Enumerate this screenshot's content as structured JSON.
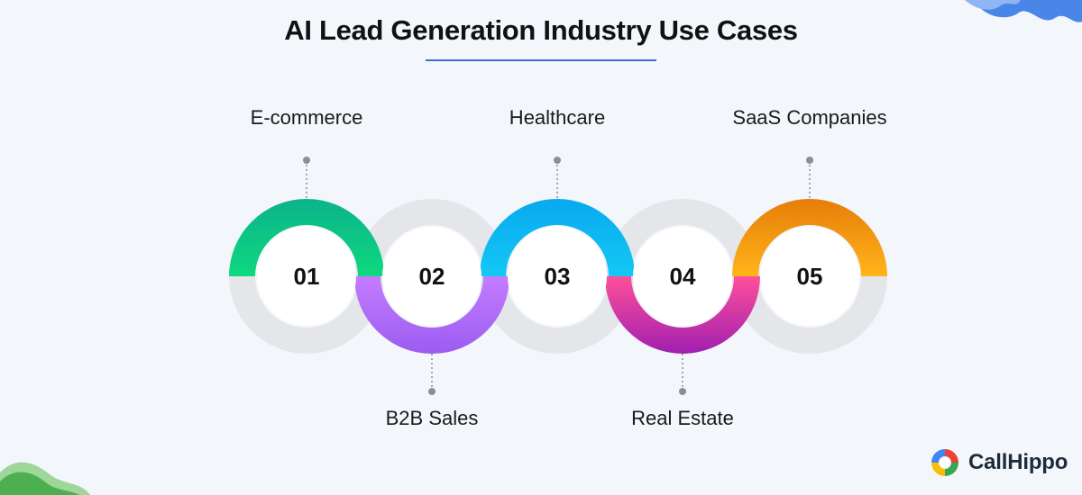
{
  "title": "AI Lead Generation Industry Use Cases",
  "brand": {
    "name": "CallHippo"
  },
  "colors": {
    "background": "#f3f7fc",
    "underline": "#3b6fd6",
    "ring_gray": "#e4e6e9",
    "disc": "#ffffff",
    "connector": "#8a8f96"
  },
  "steps": [
    {
      "number": "01",
      "label": "E-commerce",
      "color_a": "#0fd87f",
      "color_b": "#0bb38a",
      "arc": "top"
    },
    {
      "number": "02",
      "label": "B2B Sales",
      "color_a": "#c47cff",
      "color_b": "#9b5cf0",
      "arc": "bottom"
    },
    {
      "number": "03",
      "label": "Healthcare",
      "color_a": "#12c8f6",
      "color_b": "#0aa9ee",
      "arc": "top"
    },
    {
      "number": "04",
      "label": "Real Estate",
      "color_a": "#ff4f9a",
      "color_b": "#a01fb0",
      "arc": "bottom"
    },
    {
      "number": "05",
      "label": "SaaS Companies",
      "color_a": "#ffb519",
      "color_b": "#e67d0a",
      "arc": "top"
    }
  ]
}
